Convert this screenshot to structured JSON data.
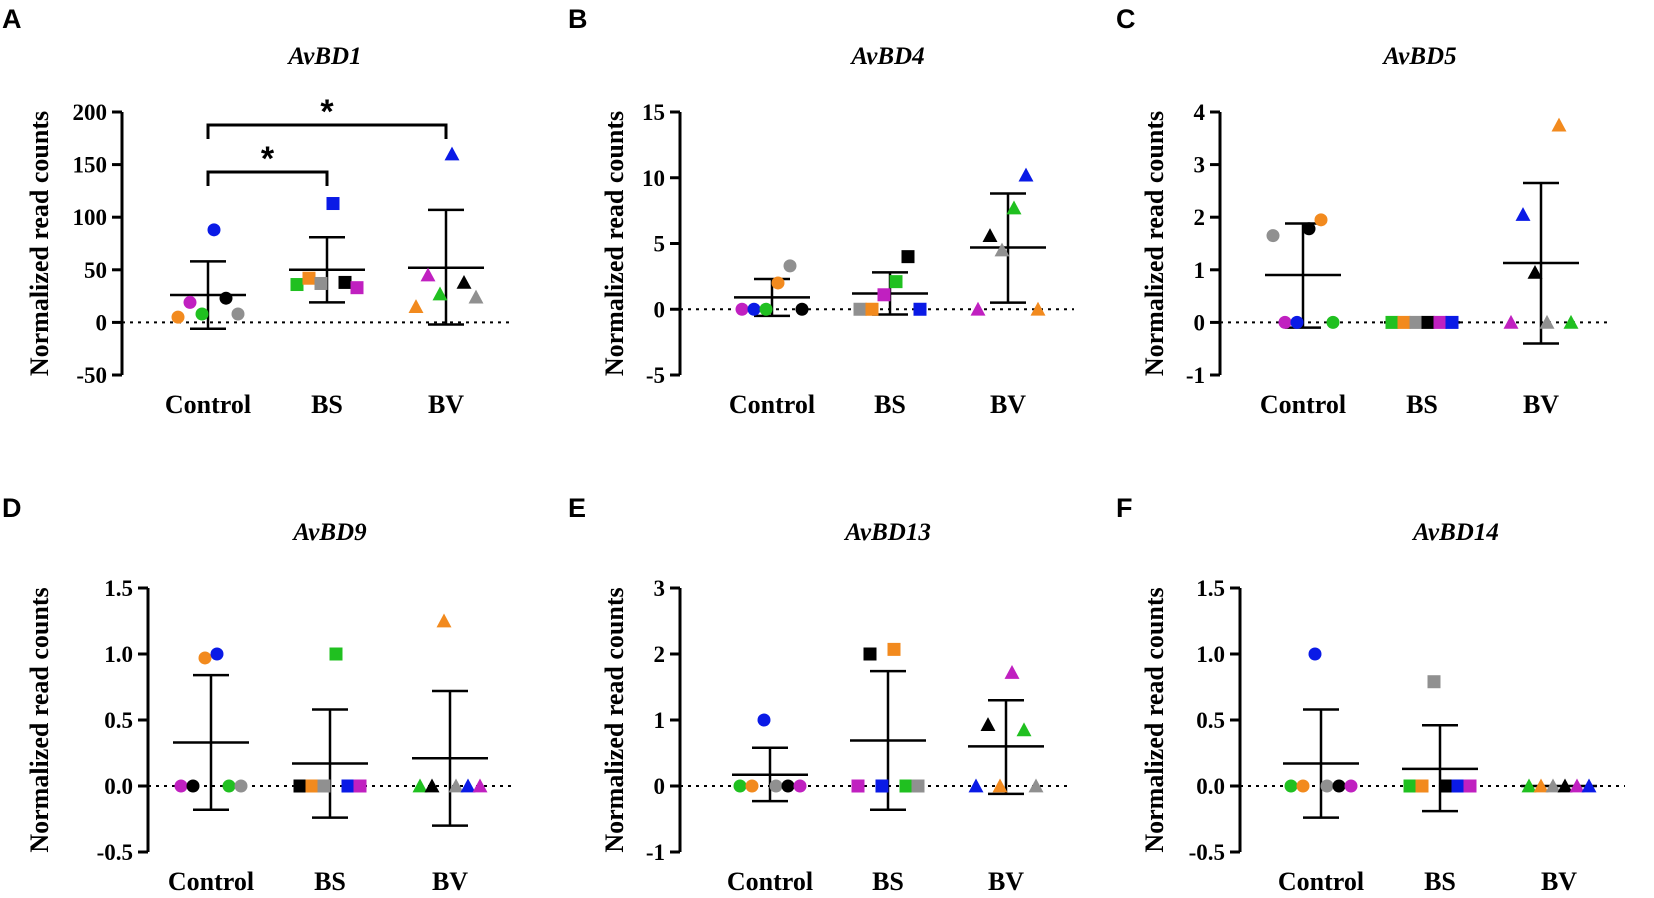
{
  "chart_data": [
    {
      "panel": "A",
      "type": "scatter",
      "title": "AvBD1",
      "ylabel": "Normalized read counts",
      "categories": [
        "Control",
        "BS",
        "BV"
      ],
      "ylim": [
        -50,
        200
      ],
      "yticks": [
        -50,
        0,
        50,
        100,
        150,
        200
      ],
      "ytick_labels": [
        "-50",
        "0",
        "50",
        "100",
        "150",
        "200"
      ],
      "series": [
        {
          "name": "Control",
          "marker": "circle",
          "values": [
            5,
            19,
            8,
            88,
            23,
            8
          ],
          "colors": [
            "#F28A1E",
            "#C020C0",
            "#20C020",
            "#0A1AE6",
            "#000000",
            "#909090"
          ]
        },
        {
          "name": "BS",
          "marker": "square",
          "values": [
            36,
            42,
            37,
            113,
            38,
            33
          ],
          "colors": [
            "#20C020",
            "#F28A1E",
            "#909090",
            "#0A1AE6",
            "#000000",
            "#C020C0"
          ]
        },
        {
          "name": "BV",
          "marker": "triangle",
          "values": [
            15,
            45,
            27,
            160,
            38,
            24
          ],
          "colors": [
            "#F28A1E",
            "#C020C0",
            "#20C020",
            "#0A1AE6",
            "#000000",
            "#909090"
          ]
        }
      ],
      "mean": [
        26,
        50,
        52
      ],
      "sd_low": [
        -6,
        19,
        -2
      ],
      "sd_high": [
        58,
        81,
        107
      ],
      "significance": [
        {
          "from": "Control",
          "to": "BS",
          "label": "*"
        },
        {
          "from": "Control",
          "to": "BV",
          "label": "*"
        }
      ]
    },
    {
      "panel": "B",
      "type": "scatter",
      "title": "AvBD4",
      "ylabel": "Normalized read counts",
      "categories": [
        "Control",
        "BS",
        "BV"
      ],
      "ylim": [
        -5,
        15
      ],
      "yticks": [
        -5,
        0,
        5,
        10,
        15
      ],
      "ytick_labels": [
        "-5",
        "0",
        "5",
        "10",
        "15"
      ],
      "series": [
        {
          "name": "Control",
          "marker": "circle",
          "values": [
            0,
            0,
            0,
            2,
            3.3,
            0
          ],
          "colors": [
            "#C020C0",
            "#0A1AE6",
            "#20C020",
            "#F28A1E",
            "#909090",
            "#000000"
          ]
        },
        {
          "name": "BS",
          "marker": "square",
          "values": [
            0,
            0,
            1.1,
            2.1,
            4,
            0
          ],
          "colors": [
            "#909090",
            "#F28A1E",
            "#C020C0",
            "#20C020",
            "#000000",
            "#0A1AE6"
          ]
        },
        {
          "name": "BV",
          "marker": "triangle",
          "values": [
            0,
            5.6,
            4.5,
            7.7,
            10.2,
            0
          ],
          "colors": [
            "#C020C0",
            "#000000",
            "#909090",
            "#20C020",
            "#0A1AE6",
            "#F28A1E"
          ]
        }
      ],
      "mean": [
        0.9,
        1.2,
        4.7
      ],
      "sd_low": [
        -0.5,
        -0.4,
        0.5
      ],
      "sd_high": [
        2.3,
        2.8,
        8.8
      ]
    },
    {
      "panel": "C",
      "type": "scatter",
      "title": "AvBD5",
      "ylabel": "Normalized read counts",
      "categories": [
        "Control",
        "BS",
        "BV"
      ],
      "ylim": [
        -1,
        4
      ],
      "yticks": [
        -1,
        0,
        1,
        2,
        3,
        4
      ],
      "ytick_labels": [
        "-1",
        "0",
        "1",
        "2",
        "3",
        "4"
      ],
      "series": [
        {
          "name": "Control",
          "marker": "circle",
          "values": [
            1.65,
            0,
            0,
            1.78,
            1.95,
            0
          ],
          "colors": [
            "#909090",
            "#C020C0",
            "#0A1AE6",
            "#000000",
            "#F28A1E",
            "#20C020"
          ]
        },
        {
          "name": "BS",
          "marker": "square",
          "values": [
            0,
            0,
            0,
            0,
            0,
            0
          ],
          "colors": [
            "#20C020",
            "#F28A1E",
            "#909090",
            "#000000",
            "#C020C0",
            "#0A1AE6"
          ]
        },
        {
          "name": "BV",
          "marker": "triangle",
          "values": [
            0,
            2.05,
            0.95,
            0,
            3.75,
            0
          ],
          "colors": [
            "#C020C0",
            "#0A1AE6",
            "#000000",
            "#909090",
            "#F28A1E",
            "#20C020"
          ]
        }
      ],
      "mean": [
        0.9,
        0,
        1.13
      ],
      "sd_low": [
        -0.1,
        0,
        -0.4
      ],
      "sd_high": [
        1.88,
        0,
        2.65
      ]
    },
    {
      "panel": "D",
      "type": "scatter",
      "title": "AvBD9",
      "ylabel": "Normalized read counts",
      "categories": [
        "Control",
        "BS",
        "BV"
      ],
      "ylim": [
        -0.5,
        1.5
      ],
      "yticks": [
        -0.5,
        0,
        0.5,
        1,
        1.5
      ],
      "ytick_labels": [
        "-0.5",
        "0.0",
        "0.5",
        "1.0",
        "1.5"
      ],
      "series": [
        {
          "name": "Control",
          "marker": "circle",
          "values": [
            0,
            0,
            0.97,
            1.0,
            0,
            0
          ],
          "colors": [
            "#C020C0",
            "#000000",
            "#F28A1E",
            "#0A1AE6",
            "#20C020",
            "#909090"
          ]
        },
        {
          "name": "BS",
          "marker": "square",
          "values": [
            0,
            0,
            0,
            1.0,
            0,
            0
          ],
          "colors": [
            "#000000",
            "#F28A1E",
            "#909090",
            "#20C020",
            "#0A1AE6",
            "#C020C0"
          ]
        },
        {
          "name": "BV",
          "marker": "triangle",
          "values": [
            0,
            0,
            1.25,
            0,
            0,
            0
          ],
          "colors": [
            "#20C020",
            "#000000",
            "#F28A1E",
            "#909090",
            "#0A1AE6",
            "#C020C0"
          ]
        }
      ],
      "mean": [
        0.33,
        0.17,
        0.21
      ],
      "sd_low": [
        -0.18,
        -0.24,
        -0.3
      ],
      "sd_high": [
        0.84,
        0.58,
        0.72
      ]
    },
    {
      "panel": "E",
      "type": "scatter",
      "title": "AvBD13",
      "ylabel": "Normalized read counts",
      "categories": [
        "Control",
        "BS",
        "BV"
      ],
      "ylim": [
        -1,
        3
      ],
      "yticks": [
        -1,
        0,
        1,
        2,
        3
      ],
      "ytick_labels": [
        "-1",
        "0",
        "1",
        "2",
        "3"
      ],
      "series": [
        {
          "name": "Control",
          "marker": "circle",
          "values": [
            0,
            0,
            1.0,
            0,
            0,
            0
          ],
          "colors": [
            "#20C020",
            "#F28A1E",
            "#0A1AE6",
            "#909090",
            "#000000",
            "#C020C0"
          ]
        },
        {
          "name": "BS",
          "marker": "square",
          "values": [
            0,
            2.0,
            0,
            2.07,
            0,
            0
          ],
          "colors": [
            "#C020C0",
            "#000000",
            "#0A1AE6",
            "#F28A1E",
            "#20C020",
            "#909090"
          ]
        },
        {
          "name": "BV",
          "marker": "triangle",
          "values": [
            0,
            0.93,
            0,
            1.72,
            0.85,
            0
          ],
          "colors": [
            "#0A1AE6",
            "#000000",
            "#F28A1E",
            "#C020C0",
            "#20C020",
            "#909090"
          ]
        }
      ],
      "mean": [
        0.17,
        0.69,
        0.6
      ],
      "sd_low": [
        -0.23,
        -0.36,
        -0.12
      ],
      "sd_high": [
        0.58,
        1.74,
        1.3
      ]
    },
    {
      "panel": "F",
      "type": "scatter",
      "title": "AvBD14",
      "ylabel": "Normalized read counts",
      "categories": [
        "Control",
        "BS",
        "BV"
      ],
      "ylim": [
        -0.5,
        1.5
      ],
      "yticks": [
        -0.5,
        0,
        0.5,
        1,
        1.5
      ],
      "ytick_labels": [
        "-0.5",
        "0.0",
        "0.5",
        "1.0",
        "1.5"
      ],
      "series": [
        {
          "name": "Control",
          "marker": "circle",
          "values": [
            0,
            0,
            1.0,
            0,
            0,
            0
          ],
          "colors": [
            "#20C020",
            "#F28A1E",
            "#0A1AE6",
            "#909090",
            "#000000",
            "#C020C0"
          ]
        },
        {
          "name": "BS",
          "marker": "square",
          "values": [
            0,
            0,
            0.79,
            0,
            0,
            0
          ],
          "colors": [
            "#20C020",
            "#F28A1E",
            "#909090",
            "#000000",
            "#0A1AE6",
            "#C020C0"
          ]
        },
        {
          "name": "BV",
          "marker": "triangle",
          "values": [
            0,
            0,
            0,
            0,
            0,
            0
          ],
          "colors": [
            "#20C020",
            "#F28A1E",
            "#909090",
            "#000000",
            "#C020C0",
            "#0A1AE6"
          ]
        }
      ],
      "mean": [
        0.17,
        0.13,
        0
      ],
      "sd_low": [
        -0.24,
        -0.19,
        0
      ],
      "sd_high": [
        0.58,
        0.46,
        0
      ]
    }
  ]
}
